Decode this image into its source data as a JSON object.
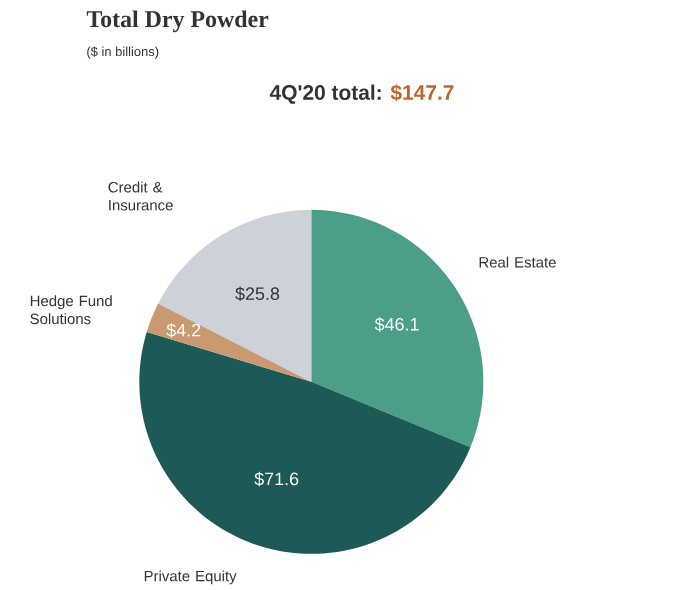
{
  "chart_data": {
    "type": "pie",
    "title": "Total Dry Powder",
    "subtitle": "($ in billions)",
    "annotations": [
      "4Q'20 total:",
      "$147.7"
    ],
    "categories": [
      "Real Estate",
      "Private Equity",
      "Hedge Fund Solutions",
      "Credit & Insurance"
    ],
    "values": [
      46.1,
      71.6,
      4.2,
      25.8
    ],
    "colors": [
      "#4b9e87",
      "#1d5a56",
      "#c99a72",
      "#cdd1da"
    ],
    "value_labels": [
      "$46.1",
      "$71.6",
      "$4.2",
      "$25.8"
    ]
  }
}
